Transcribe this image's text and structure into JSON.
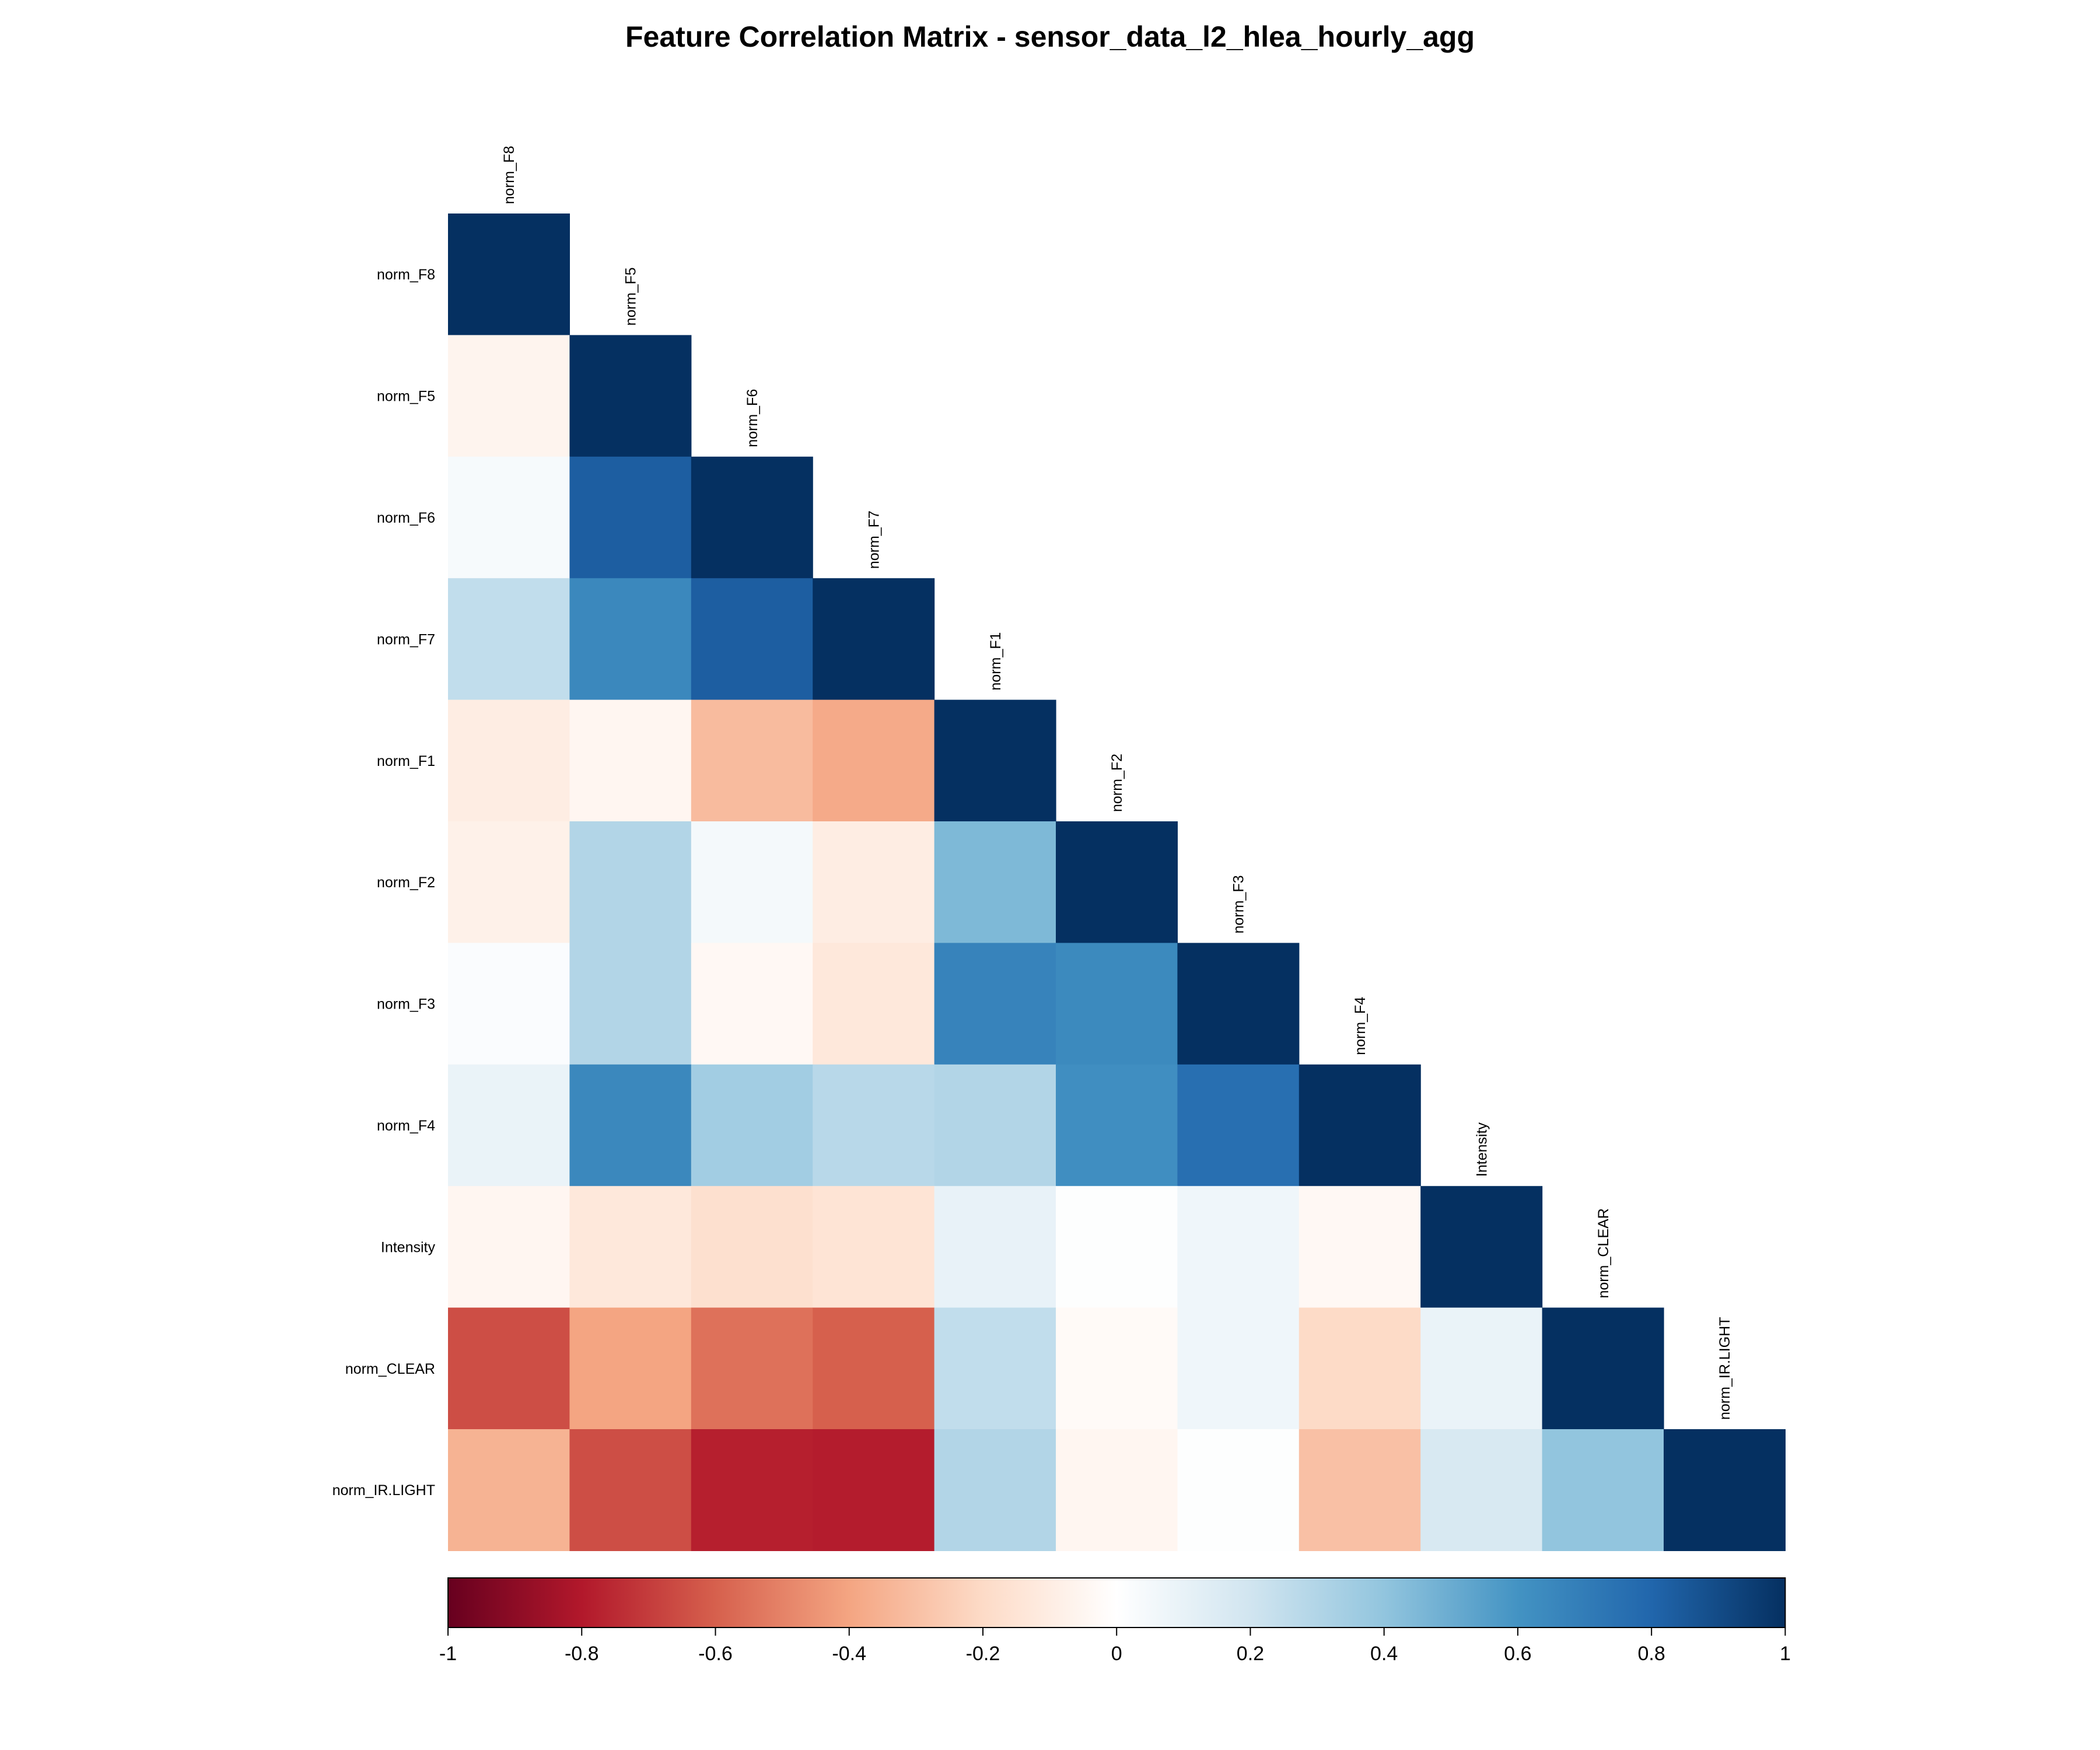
{
  "chart_data": {
    "type": "heatmap",
    "title": "Feature Correlation Matrix - sensor_data_l2_hlea_hourly_agg",
    "variables": [
      "norm_F8",
      "norm_F5",
      "norm_F6",
      "norm_F7",
      "norm_F1",
      "norm_F2",
      "norm_F3",
      "norm_F4",
      "Intensity",
      "norm_CLEAR",
      "norm_IR.LIGHT"
    ],
    "matrix_shape": "lower-triangle",
    "values": [
      [
        1.0
      ],
      [
        -0.06,
        1.0
      ],
      [
        0.04,
        0.83,
        1.0
      ],
      [
        0.25,
        0.65,
        0.83,
        1.0
      ],
      [
        -0.1,
        -0.05,
        -0.32,
        -0.38,
        1.0
      ],
      [
        -0.08,
        0.3,
        0.05,
        -0.1,
        0.45,
        1.0
      ],
      [
        0.02,
        0.3,
        -0.04,
        -0.13,
        0.67,
        0.64,
        1.0
      ],
      [
        0.09,
        0.65,
        0.35,
        0.28,
        0.3,
        0.62,
        0.76,
        1.0
      ],
      [
        -0.05,
        -0.13,
        -0.17,
        -0.15,
        0.1,
        0.01,
        0.07,
        -0.04,
        1.0
      ],
      [
        -0.65,
        -0.4,
        -0.55,
        -0.6,
        0.25,
        -0.03,
        0.07,
        -0.2,
        0.09,
        1.0
      ],
      [
        -0.35,
        -0.65,
        -0.78,
        -0.79,
        0.3,
        -0.05,
        0.01,
        -0.3,
        0.17,
        0.4,
        1.0
      ]
    ],
    "colorbar": {
      "min": -1,
      "max": 1,
      "ticks": [
        -1,
        -0.8,
        -0.6,
        -0.4,
        -0.2,
        0,
        0.2,
        0.4,
        0.6,
        0.8,
        1
      ],
      "tick_labels": [
        "-1",
        "-0.8",
        "-0.6",
        "-0.4",
        "-0.2",
        "0",
        "0.2",
        "0.4",
        "0.6",
        "0.8",
        "1"
      ],
      "colors": [
        "#67001f",
        "#b2182b",
        "#d6604d",
        "#f4a582",
        "#fddbc7",
        "#ffffff",
        "#d1e5f0",
        "#92c5de",
        "#4393c3",
        "#2166ac",
        "#053061"
      ],
      "placement": "bottom"
    },
    "grid": false
  }
}
